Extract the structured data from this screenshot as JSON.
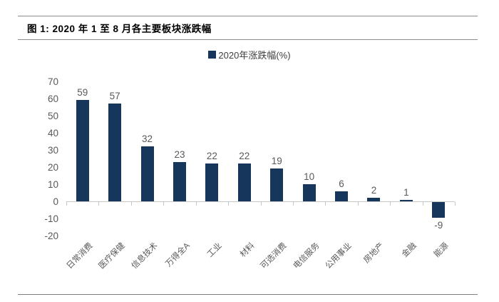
{
  "header": {
    "title": "图  1:  2020 年 1 至 8 月各主要板块涨跌幅"
  },
  "legend": {
    "label": "2020年涨跌幅(%)"
  },
  "chart_data": {
    "type": "bar",
    "title": "2020 年 1 至 8 月各主要板块涨跌幅",
    "legend_entries": [
      "2020年涨跌幅(%)"
    ],
    "legend_position": "top",
    "categories": [
      "日常消费",
      "医疗保健",
      "信息技术",
      "万得全A",
      "工业",
      "材料",
      "可选消费",
      "电信服务",
      "公用事业",
      "房地产",
      "金融",
      "能源"
    ],
    "values": [
      59,
      57,
      32,
      23,
      22,
      22,
      19,
      10,
      6,
      2,
      1,
      -9
    ],
    "xlabel": "",
    "ylabel": "",
    "ylim": [
      -20,
      70
    ],
    "ytick_step": 10,
    "grid": false,
    "bar_color": "#16365c",
    "value_label_color": "#595959",
    "axis_label_color": "#595959",
    "axis_color": "#c6c6c6"
  }
}
